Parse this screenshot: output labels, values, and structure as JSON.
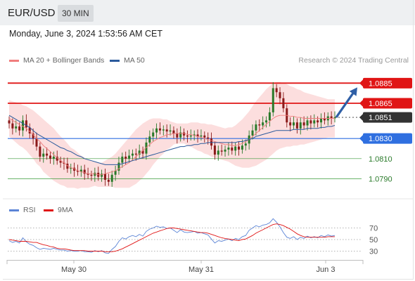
{
  "header": {
    "pair": "EUR/USD",
    "timeframe": "30 MIN"
  },
  "datetime": "Monday, June 3, 2024 1:53:56 AM CET",
  "legend": {
    "ma20": {
      "label": "MA 20 + Bollinger Bands",
      "color": "#f07d7d"
    },
    "ma50": {
      "label": "MA 50",
      "color": "#2b5a9c"
    },
    "credit": "Research © 2024 Trading Central"
  },
  "rsi_legend": {
    "rsi": {
      "label": "RSI",
      "color": "#5b84d6"
    },
    "ma9": {
      "label": "9MA",
      "color": "#e01515"
    }
  },
  "colors": {
    "up": "#2a7a2a",
    "down": "#8b1a1a",
    "resistance": "#e01515",
    "support": "#2f6fe0",
    "target": "#3a9a3a",
    "current": "#333333",
    "arrow": "#2f5fa6"
  },
  "levels": [
    {
      "label": "1.0885",
      "price": 1.0885,
      "kind": "resistance"
    },
    {
      "label": "1.0865",
      "price": 1.0865,
      "kind": "resistance"
    },
    {
      "label": "1.0851",
      "price": 1.0851,
      "kind": "current"
    },
    {
      "label": "1.0830",
      "price": 1.083,
      "kind": "support"
    },
    {
      "label": "1.0810",
      "price": 1.081,
      "kind": "target"
    },
    {
      "label": "1.0790",
      "price": 1.079,
      "kind": "target"
    }
  ],
  "rsi_axis": [
    "70",
    "50",
    "30"
  ],
  "x_labels": [
    "May 30",
    "May 31",
    "Jun 3"
  ],
  "chart_data": {
    "type": "candlestick",
    "price_range": [
      1.0775,
      1.0895
    ],
    "closes": [
      1.0845,
      1.084,
      1.0842,
      1.0838,
      1.0848,
      1.0841,
      1.0835,
      1.083,
      1.0822,
      1.0812,
      1.0815,
      1.0813,
      1.081,
      1.0812,
      1.0808,
      1.0806,
      1.0805,
      1.08,
      1.0801,
      1.0798,
      1.0797,
      1.0799,
      1.0795,
      1.0794,
      1.0793,
      1.0796,
      1.0792,
      1.0795,
      1.0789,
      1.0787,
      1.0794,
      1.0798,
      1.0806,
      1.0812,
      1.081,
      1.0813,
      1.0815,
      1.0814,
      1.0818,
      1.0815,
      1.0826,
      1.0832,
      1.0836,
      1.084,
      1.0838,
      1.0839,
      1.0837,
      1.0838,
      1.0835,
      1.0831,
      1.0836,
      1.0833,
      1.0832,
      1.0833,
      1.0834,
      1.0832,
      1.0833,
      1.0831,
      1.083,
      1.0823,
      1.0814,
      1.0818,
      1.0817,
      1.0819,
      1.0821,
      1.0818,
      1.0822,
      1.0819,
      1.0823,
      1.0825,
      1.0833,
      1.0838,
      1.0844,
      1.0843,
      1.0846,
      1.0848,
      1.0856,
      1.088,
      1.0876,
      1.087,
      1.086,
      1.0846,
      1.0843,
      1.0846,
      1.084,
      1.0846,
      1.0843,
      1.0848,
      1.0845,
      1.0848,
      1.0846,
      1.085,
      1.0848,
      1.0852,
      1.085,
      1.0851
    ],
    "ma20": [
      1.085,
      1.0848,
      1.0846,
      1.0844,
      1.0842,
      1.084,
      1.0837,
      1.0834,
      1.083,
      1.0827,
      1.0823,
      1.082,
      1.0817,
      1.0814,
      1.0811,
      1.0808,
      1.0806,
      1.0803,
      1.0801,
      1.08,
      1.0798,
      1.0797,
      1.0796,
      1.0795,
      1.0795,
      1.0795,
      1.0794,
      1.0794,
      1.0795,
      1.0796,
      1.0797,
      1.0798,
      1.08,
      1.0802,
      1.0804,
      1.0806,
      1.0809,
      1.0812,
      1.0815,
      1.0818,
      1.0821,
      1.0824,
      1.0827,
      1.0829,
      1.0831,
      1.0832,
      1.0834,
      1.0834,
      1.0835,
      1.0835,
      1.0835,
      1.0835,
      1.0834,
      1.0834,
      1.0833,
      1.0832,
      1.0831,
      1.083,
      1.0829,
      1.0828,
      1.0827,
      1.0826,
      1.0825,
      1.0824,
      1.0824,
      1.0823,
      1.0823,
      1.0824,
      1.0825,
      1.0827,
      1.0829,
      1.0832,
      1.0835,
      1.0838,
      1.0841,
      1.0844,
      1.0847,
      1.085,
      1.0852,
      1.0853,
      1.0853,
      1.0853,
      1.0852,
      1.0852,
      1.0851,
      1.0851,
      1.085,
      1.085,
      1.085,
      1.085,
      1.085,
      1.085,
      1.085,
      1.085,
      1.085,
      1.085
    ],
    "ma50": [
      1.0853,
      1.0851,
      1.0849,
      1.0847,
      1.0845,
      1.0843,
      1.0841,
      1.0838,
      1.0835,
      1.0833,
      1.0831,
      1.0829,
      1.0827,
      1.0825,
      1.0823,
      1.0821,
      1.082,
      1.0818,
      1.0817,
      1.0815,
      1.0813,
      1.0812,
      1.081,
      1.0809,
      1.0808,
      1.0807,
      1.0806,
      1.0805,
      1.0804,
      1.0804,
      1.0804,
      1.0804,
      1.0804,
      1.0805,
      1.0806,
      1.0807,
      1.0808,
      1.0809,
      1.081,
      1.0811,
      1.0812,
      1.0813,
      1.0814,
      1.0815,
      1.0816,
      1.0817,
      1.0818,
      1.0819,
      1.082,
      1.0821,
      1.0822,
      1.0822,
      1.0823,
      1.0823,
      1.0824,
      1.0824,
      1.0825,
      1.0825,
      1.0826,
      1.0826,
      1.0826,
      1.0826,
      1.0826,
      1.0826,
      1.0826,
      1.0826,
      1.0826,
      1.0827,
      1.0827,
      1.0828,
      1.0829,
      1.083,
      1.0832,
      1.0833,
      1.0834,
      1.0835,
      1.0836,
      1.0837,
      1.0838,
      1.0838,
      1.0838,
      1.0838,
      1.0838,
      1.0839,
      1.0839,
      1.0839,
      1.0839,
      1.084,
      1.084,
      1.084,
      1.084,
      1.0841,
      1.0841,
      1.0842,
      1.0842,
      1.0843
    ],
    "bb_width": [
      0.0018,
      0.0019,
      0.002,
      0.0021,
      0.0021,
      0.0022,
      0.0023,
      0.0024,
      0.0025,
      0.0025,
      0.0026,
      0.0026,
      0.0026,
      0.0026,
      0.0025,
      0.0024,
      0.0023,
      0.0022,
      0.002,
      0.0019,
      0.0018,
      0.0016,
      0.0015,
      0.0014,
      0.0013,
      0.0012,
      0.0012,
      0.0012,
      0.0013,
      0.0014,
      0.0015,
      0.0017,
      0.0019,
      0.0021,
      0.0023,
      0.0025,
      0.0026,
      0.0027,
      0.0027,
      0.0027,
      0.0026,
      0.0025,
      0.0023,
      0.0021,
      0.0019,
      0.0017,
      0.0015,
      0.0013,
      0.0011,
      0.001,
      0.001,
      0.001,
      0.0011,
      0.0012,
      0.0013,
      0.0014,
      0.0014,
      0.0015,
      0.0015,
      0.0016,
      0.0016,
      0.0016,
      0.0016,
      0.0016,
      0.0017,
      0.0018,
      0.002,
      0.0022,
      0.0024,
      0.0026,
      0.0028,
      0.003,
      0.0032,
      0.0033,
      0.0034,
      0.0035,
      0.0035,
      0.0035,
      0.0034,
      0.0033,
      0.0032,
      0.0031,
      0.003,
      0.0029,
      0.0028,
      0.0027,
      0.0026,
      0.0025,
      0.0024,
      0.0023,
      0.0022,
      0.0021,
      0.002,
      0.0019,
      0.0019,
      0.0019
    ],
    "rsi": [
      48,
      45,
      47,
      44,
      53,
      46,
      42,
      40,
      36,
      33,
      35,
      34,
      33,
      35,
      33,
      32,
      32,
      30,
      31,
      30,
      30,
      31,
      29,
      29,
      28,
      31,
      29,
      31,
      27,
      26,
      33,
      38,
      47,
      53,
      51,
      55,
      57,
      55,
      59,
      56,
      64,
      68,
      70,
      73,
      71,
      72,
      69,
      70,
      66,
      62,
      67,
      63,
      62,
      63,
      64,
      61,
      62,
      60,
      58,
      51,
      44,
      48,
      47,
      49,
      51,
      48,
      52,
      50,
      55,
      57,
      66,
      70,
      74,
      72,
      75,
      76,
      79,
      86,
      80,
      72,
      62,
      54,
      52,
      55,
      50,
      54,
      52,
      56,
      53,
      55,
      53,
      57,
      55,
      58,
      56,
      57
    ],
    "rsi_ma9": [
      50,
      49,
      48,
      47,
      47,
      47,
      46,
      45,
      45,
      43,
      41,
      40,
      38,
      37,
      35,
      34,
      34,
      33,
      32,
      31,
      31,
      31,
      31,
      30,
      30,
      30,
      30,
      30,
      29,
      29,
      29,
      30,
      32,
      34,
      37,
      40,
      43,
      46,
      49,
      52,
      55,
      58,
      61,
      63,
      65,
      67,
      69,
      70,
      70,
      69,
      68,
      67,
      66,
      65,
      64,
      63,
      62,
      62,
      61,
      59,
      57,
      55,
      53,
      52,
      51,
      50,
      49,
      48,
      50,
      51,
      54,
      57,
      61,
      64,
      67,
      70,
      73,
      76,
      77,
      76,
      74,
      71,
      68,
      64,
      60,
      57,
      55,
      54,
      54,
      54,
      54,
      54,
      54,
      55,
      55,
      55
    ],
    "rsi_range": [
      10,
      90
    ],
    "forecast": {
      "from": 1.0851,
      "to": 1.0885
    }
  }
}
